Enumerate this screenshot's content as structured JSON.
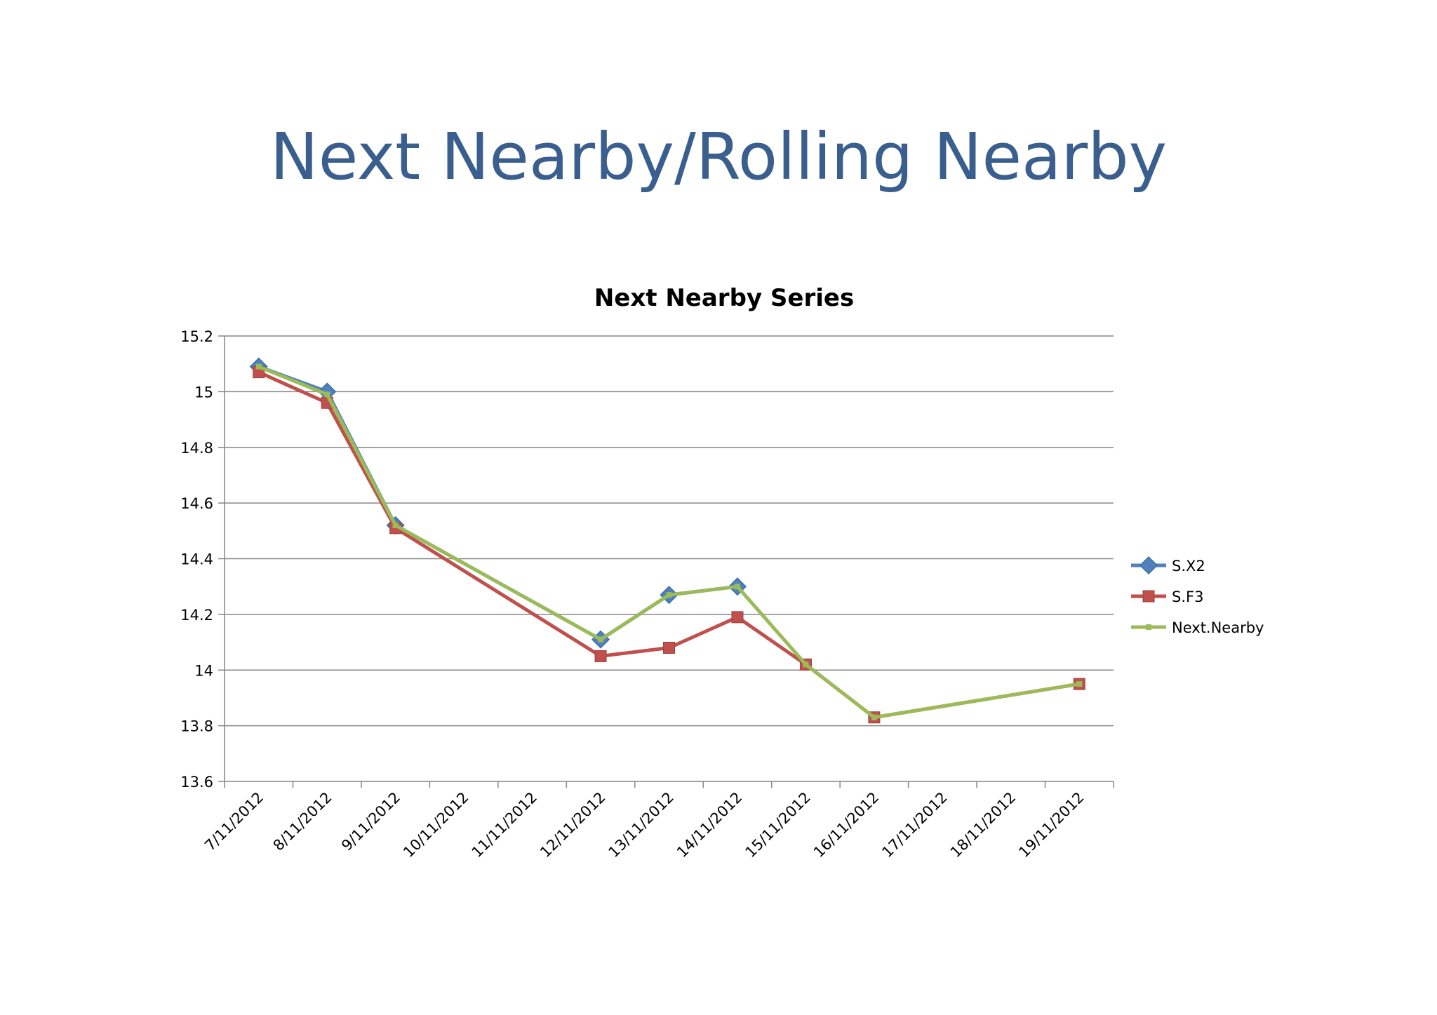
{
  "slide": {
    "title": "Next Nearby/Rolling Nearby"
  },
  "chart_data": {
    "type": "line",
    "title": "Next Nearby Series",
    "xlabel": "",
    "ylabel": "",
    "categories": [
      "7/11/2012",
      "8/11/2012",
      "9/11/2012",
      "10/11/2012",
      "11/11/2012",
      "12/11/2012",
      "13/11/2012",
      "14/11/2012",
      "15/11/2012",
      "16/11/2012",
      "17/11/2012",
      "18/11/2012",
      "19/11/2012"
    ],
    "ylim": [
      13.6,
      15.2
    ],
    "yticks": [
      "13.6",
      "13.8",
      "14",
      "14.2",
      "14.4",
      "14.6",
      "14.8",
      "15",
      "15.2"
    ],
    "grid": "horizontal",
    "legend": "right",
    "series": [
      {
        "name": "S.X2",
        "color": "#4f81bd",
        "marker": "diamond",
        "values": [
          15.09,
          15.0,
          14.52,
          null,
          null,
          14.11,
          14.27,
          14.3,
          null,
          null,
          null,
          null,
          null
        ]
      },
      {
        "name": "S.F3",
        "color": "#c0504d",
        "marker": "square",
        "values": [
          15.07,
          14.96,
          14.51,
          null,
          null,
          14.05,
          14.08,
          14.19,
          14.02,
          13.83,
          null,
          null,
          13.95
        ]
      },
      {
        "name": "Next.Nearby",
        "color": "#9bbb59",
        "marker": "small-square",
        "values": [
          15.09,
          14.99,
          14.52,
          null,
          null,
          14.11,
          14.27,
          14.3,
          14.02,
          13.83,
          null,
          null,
          13.95
        ]
      }
    ]
  }
}
